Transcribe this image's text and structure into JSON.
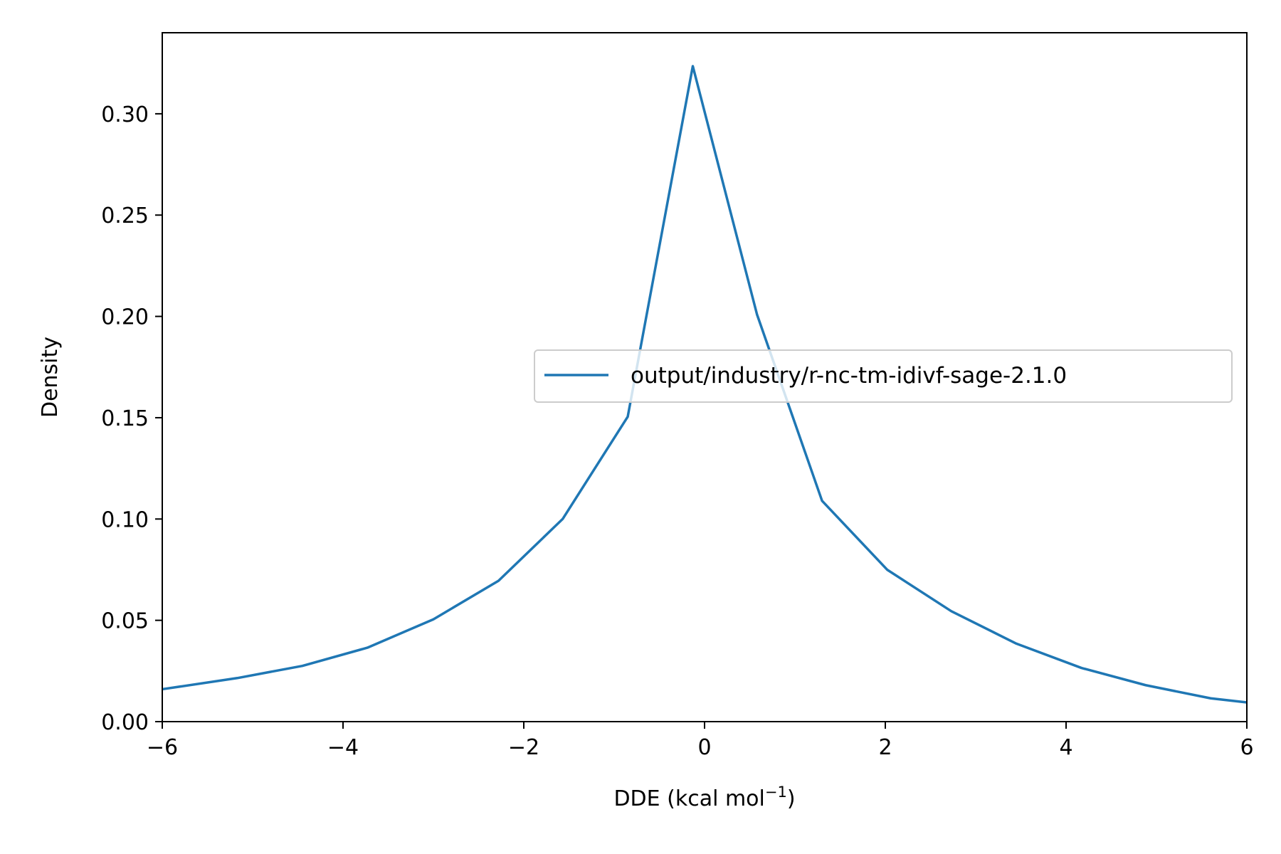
{
  "chart_data": {
    "type": "line",
    "title": "",
    "xlabel": "DDE (kcal mol",
    "xlabel_superscript": "−1",
    "xlabel_suffix": ")",
    "ylabel": "Density",
    "xlim": [
      -6,
      6
    ],
    "ylim": [
      0,
      0.34
    ],
    "xticks": [
      -6,
      -4,
      -2,
      0,
      2,
      4,
      6
    ],
    "xtick_labels": [
      "−6",
      "−4",
      "−2",
      "0",
      "2",
      "4",
      "6"
    ],
    "yticks": [
      0,
      0.05,
      0.1,
      0.15,
      0.2,
      0.25,
      0.3
    ],
    "ytick_labels": [
      "0.00",
      "0.05",
      "0.10",
      "0.15",
      "0.20",
      "0.25",
      "0.30"
    ],
    "grid": false,
    "legend_position": "center-right",
    "series": [
      {
        "name": "output/industry/r-nc-tm-idivf-sage-2.1.0",
        "color": "#1f77b4",
        "x": [
          -6.0,
          -5.17,
          -4.45,
          -3.73,
          -3.0,
          -2.28,
          -1.57,
          -0.85,
          -0.13,
          0.58,
          1.3,
          2.02,
          2.73,
          3.45,
          4.17,
          4.88,
          5.6,
          6.0
        ],
        "y": [
          0.016,
          0.0215,
          0.0275,
          0.0365,
          0.0505,
          0.0695,
          0.1,
          0.1505,
          0.3235,
          0.201,
          0.109,
          0.075,
          0.0545,
          0.0385,
          0.0265,
          0.018,
          0.0115,
          0.0095
        ]
      }
    ]
  }
}
